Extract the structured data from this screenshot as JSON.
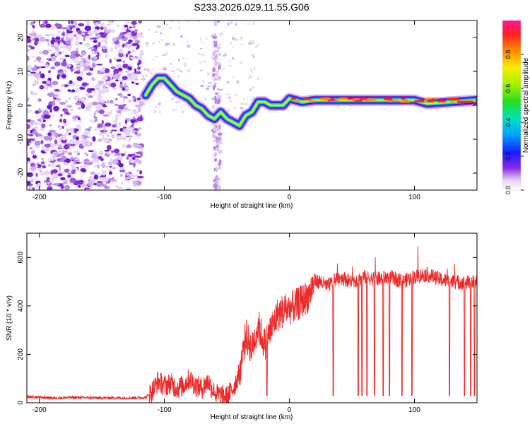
{
  "title": "S233.2026.029.11.55.G06",
  "chart_data": [
    {
      "type": "heatmap",
      "xlabel": "Height of straight line (km)",
      "ylabel": "Frequency (Hz)",
      "xlim": [
        -210,
        150
      ],
      "ylim": [
        -25,
        25
      ],
      "xticks": [
        -200,
        -100,
        0,
        100
      ],
      "yticks": [
        -20,
        -10,
        0,
        10,
        20
      ],
      "ridge": {
        "x": [
          -115,
          -110,
          -105,
          -100,
          -95,
          -90,
          -85,
          -80,
          -75,
          -70,
          -65,
          -60,
          -55,
          -50,
          -45,
          -40,
          -35,
          -30,
          -25,
          -20,
          -15,
          -10,
          -5,
          0,
          10,
          20,
          50,
          100,
          110,
          150
        ],
        "y": [
          3,
          6,
          8,
          8,
          6,
          4,
          3,
          2,
          0,
          -1,
          -3,
          -4,
          -2,
          -4,
          -5,
          -6,
          -3,
          -2,
          1,
          1,
          0,
          0,
          0,
          2,
          1,
          1.5,
          1.5,
          1.5,
          0.5,
          1.5
        ]
      },
      "colorbar": {
        "label": "Normalized spectral amplitude",
        "range": [
          0,
          1
        ],
        "ticks": [
          0.0,
          0.2,
          0.4,
          0.6,
          0.8
        ]
      }
    },
    {
      "type": "line",
      "xlabel": "Height of straight line (km)",
      "ylabel": "SNR (10 * v/v)",
      "xlim": [
        -210,
        150
      ],
      "ylim": [
        0,
        700
      ],
      "xticks": [
        -200,
        -100,
        0,
        100
      ],
      "yticks": [
        0,
        200,
        400,
        600
      ],
      "series": [
        {
          "name": "SNR",
          "x": [
            -210,
            -190,
            -170,
            -150,
            -130,
            -115,
            -110,
            -105,
            -100,
            -95,
            -90,
            -85,
            -80,
            -75,
            -70,
            -65,
            -60,
            -55,
            -50,
            -45,
            -40,
            -35,
            -30,
            -25,
            -20,
            -15,
            -10,
            -5,
            0,
            5,
            10,
            15,
            20,
            25,
            30,
            40,
            50,
            60,
            70,
            80,
            90,
            100,
            110,
            120,
            130,
            140,
            150
          ],
          "values": [
            25,
            20,
            22,
            20,
            20,
            22,
            45,
            90,
            70,
            80,
            60,
            70,
            100,
            70,
            60,
            90,
            40,
            30,
            25,
            60,
            120,
            280,
            220,
            320,
            240,
            300,
            360,
            380,
            390,
            400,
            420,
            440,
            500,
            500,
            480,
            520,
            500,
            520,
            510,
            520,
            500,
            520,
            530,
            510,
            500,
            495,
            500
          ]
        }
      ]
    }
  ]
}
